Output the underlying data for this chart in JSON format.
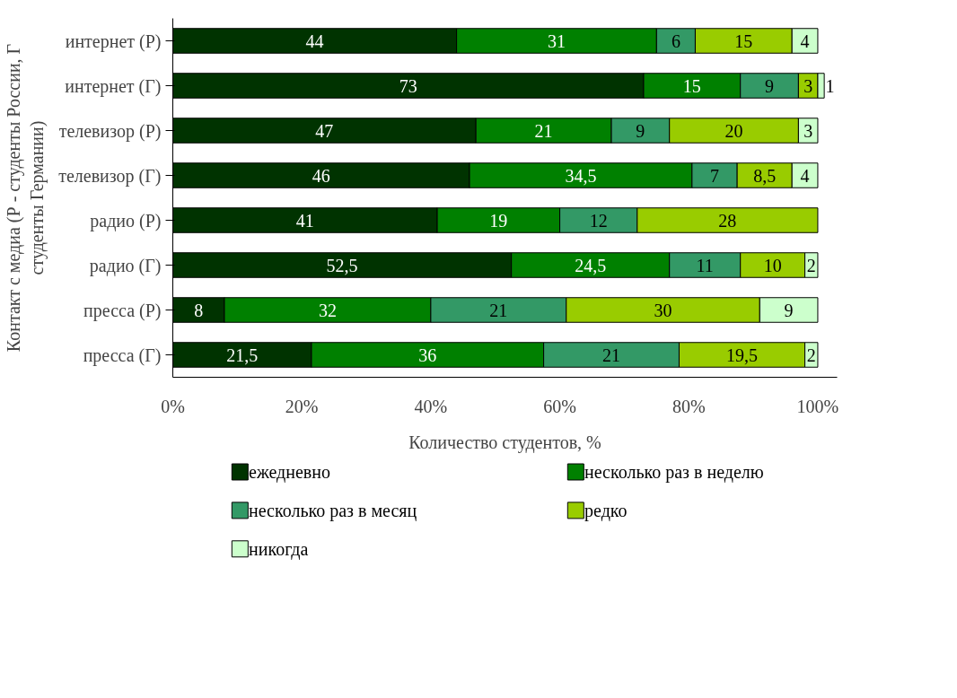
{
  "chart_data": {
    "type": "bar",
    "orientation": "horizontal",
    "stacked": true,
    "xlabel": "Количество студентов, %",
    "ylabel": "Контакт с медиа (Р - студенты России, Г\nстуденты Германии)",
    "categories": [
      "интернет (Р)",
      "интернет (Г)",
      "телевизор (Р)",
      "телевизор (Г)",
      "радио (Р)",
      "радио (Г)",
      "пресса (Р)",
      "пресса (Г)"
    ],
    "series": [
      {
        "name": "ежедневно",
        "color": "#003300",
        "values": [
          44,
          73,
          47,
          46,
          41,
          52.5,
          8,
          21.5
        ],
        "value_labels": [
          "44",
          "73",
          "47",
          "46",
          "41",
          "52,5",
          "8",
          "21,5"
        ]
      },
      {
        "name": "несколько раз в неделю",
        "color": "#008000",
        "values": [
          31,
          15,
          21,
          34.5,
          19,
          24.5,
          32,
          36
        ],
        "value_labels": [
          "31",
          "15",
          "21",
          "34,5",
          "19",
          "24,5",
          "32",
          "36"
        ]
      },
      {
        "name": "несколько раз в месяц",
        "color": "#339966",
        "values": [
          6,
          9,
          9,
          7,
          12,
          11,
          21,
          21
        ],
        "value_labels": [
          "6",
          "9",
          "9",
          "7",
          "12",
          "11",
          "21",
          "21"
        ]
      },
      {
        "name": "редко",
        "color": "#99cc00",
        "values": [
          15,
          3,
          20,
          8.5,
          28,
          10,
          30,
          19.5
        ],
        "value_labels": [
          "15",
          "3",
          "20",
          "8,5",
          "28",
          "10",
          "30",
          "19,5"
        ]
      },
      {
        "name": "никогда",
        "color": "#ccffcc",
        "values": [
          4,
          1,
          3,
          4,
          null,
          2,
          9,
          2
        ],
        "value_labels": [
          "4",
          "1",
          "3",
          "4",
          null,
          "2",
          "9",
          "2"
        ]
      }
    ],
    "xlim": [
      0,
      103
    ],
    "xticks": [
      {
        "value": 0,
        "label": "0%"
      },
      {
        "value": 20,
        "label": "20%"
      },
      {
        "value": 40,
        "label": "40%"
      },
      {
        "value": 60,
        "label": "60%"
      },
      {
        "value": 80,
        "label": "80%"
      },
      {
        "value": 100,
        "label": "100%"
      }
    ],
    "grid": false,
    "legend": "bottom"
  }
}
